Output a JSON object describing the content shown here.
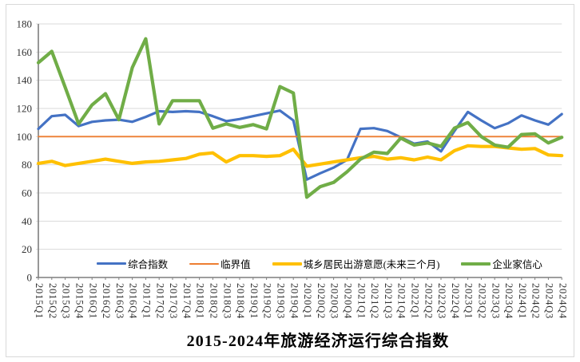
{
  "title": "2015-2024年旅游经济运行综合指数",
  "frame": {
    "border_color": "#D9D9D9",
    "background": "#FFFFFF"
  },
  "axis": {
    "tick_label_color": "#333333",
    "gridline_color": "#D9D9D9",
    "axis_color": "#7F7F7F"
  },
  "chart_data": {
    "type": "line",
    "title": "2015-2024年旅游经济运行综合指数",
    "ylim": [
      0,
      180
    ],
    "ytick_step": 20,
    "grid": true,
    "legend_position": "bottom-inside",
    "categories": [
      "2015Q1",
      "2015Q2",
      "2015Q3",
      "2015Q4",
      "2016Q1",
      "2016Q2",
      "2016Q3",
      "2016Q4",
      "2017Q1",
      "2017Q2",
      "2017Q3",
      "2017Q4",
      "2018Q1",
      "2018Q2",
      "2018Q3",
      "2018Q4",
      "2019Q1",
      "2019Q2",
      "2019Q3",
      "2019Q4",
      "2020Q1",
      "2020Q2",
      "2020Q3",
      "2020Q4",
      "2021Q1",
      "2021Q2",
      "2021Q3",
      "2021Q4",
      "2022Q1",
      "2022Q2",
      "2022Q3",
      "2022Q4",
      "2023Q1",
      "2023Q2",
      "2023Q3",
      "2023Q4",
      "2024Q1",
      "2024Q2",
      "2024Q3",
      "2024Q4"
    ],
    "series": [
      {
        "key": "composite-index",
        "name": "综合指数",
        "color": "#4472C4",
        "line_width": 3.2,
        "values": [
          105.5,
          114.5,
          115.5,
          107.5,
          110.5,
          111.5,
          112,
          110.5,
          114,
          118,
          117.5,
          118,
          117.5,
          114.5,
          111,
          112.5,
          114.5,
          116.5,
          118.5,
          111.5,
          69.5,
          74,
          78,
          83.5,
          105.5,
          106,
          104,
          99.5,
          95,
          96.5,
          89.5,
          104,
          117.5,
          111.5,
          106,
          109.5,
          115,
          111.5,
          108.5,
          116
        ]
      },
      {
        "key": "threshold",
        "name": "临界值",
        "color": "#ED7D31",
        "line_width": 1.8,
        "values": [
          100,
          100,
          100,
          100,
          100,
          100,
          100,
          100,
          100,
          100,
          100,
          100,
          100,
          100,
          100,
          100,
          100,
          100,
          100,
          100,
          100,
          100,
          100,
          100,
          100,
          100,
          100,
          100,
          100,
          100,
          100,
          100,
          100,
          100,
          100,
          100,
          100,
          100,
          100,
          100
        ]
      },
      {
        "key": "travel-intention",
        "name": "城乡居民出游意愿(未来三个月)",
        "color": "#FFC000",
        "line_width": 4.2,
        "values": [
          81,
          82.5,
          79.5,
          81,
          82.5,
          84,
          82.5,
          81,
          82,
          82.5,
          83.5,
          84.5,
          87.5,
          88.5,
          82,
          86.5,
          86.5,
          86,
          86.5,
          91,
          79,
          80.5,
          82,
          83.5,
          85,
          86,
          84,
          85,
          83.5,
          85.5,
          83.5,
          90,
          93.5,
          93,
          93,
          92,
          91,
          91.5,
          87,
          86.5
        ]
      },
      {
        "key": "entrepreneur-confidence",
        "name": "企业家信心",
        "color": "#70AD47",
        "line_width": 4.2,
        "values": [
          152.5,
          160.5,
          135,
          109,
          122.5,
          130.5,
          112,
          149,
          169.5,
          109,
          125.5,
          125.5,
          125.5,
          106,
          109,
          106.5,
          108.5,
          105.5,
          135.5,
          131,
          57,
          64.5,
          67.5,
          75,
          84,
          89,
          88,
          99,
          94,
          95.5,
          93,
          106,
          110,
          100,
          94,
          92.5,
          101.5,
          102,
          95.5,
          99.5
        ]
      }
    ]
  }
}
